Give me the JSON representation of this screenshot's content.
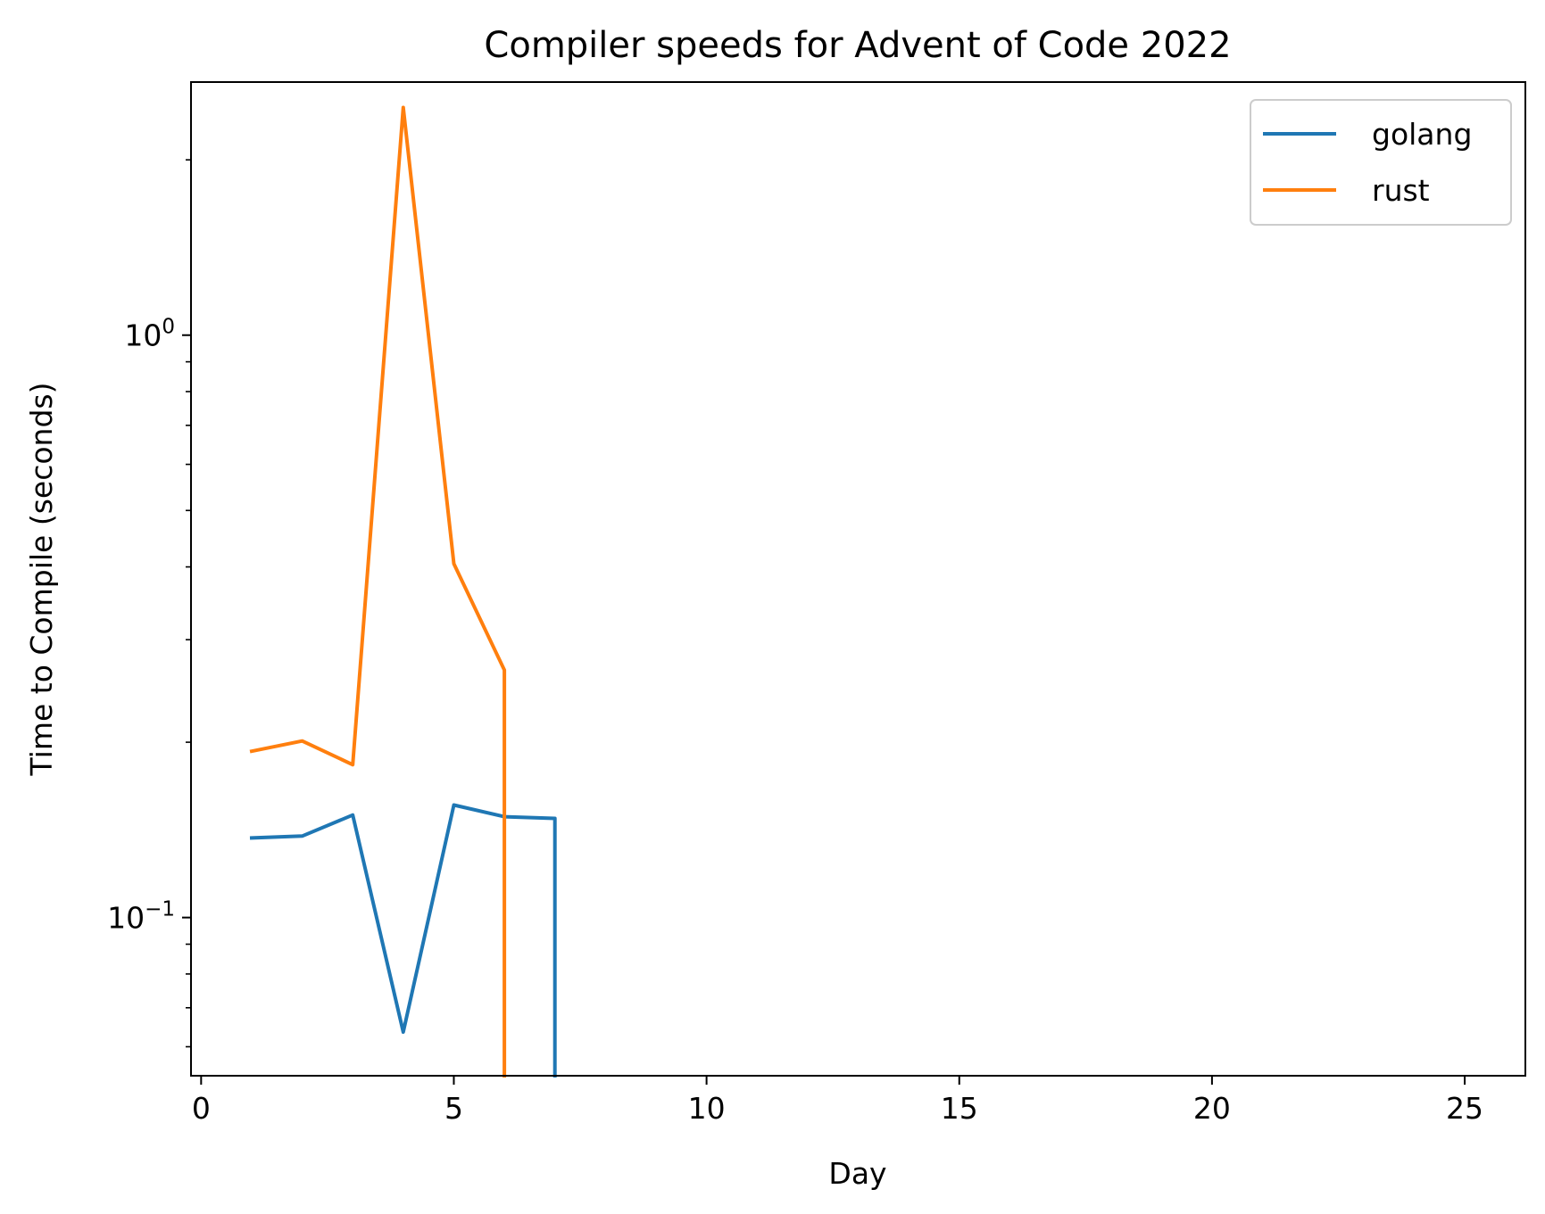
{
  "chart_data": {
    "type": "line",
    "title": "Compiler speeds for Advent of Code 2022",
    "xlabel": "Day",
    "ylabel": "Time to Compile (seconds)",
    "xlim": [
      -0.2,
      26.2
    ],
    "ylim": [
      0.0535,
      2.72
    ],
    "yscale": "log",
    "grid": false,
    "legend_position": "top-right",
    "x_ticks": [
      0,
      5,
      10,
      15,
      20,
      25
    ],
    "y_major_ticks": [
      {
        "value": 1,
        "base": "10",
        "exp": "0"
      },
      {
        "value": 0.1,
        "base": "10",
        "exp": "−1"
      }
    ],
    "y_minor_ticks": [
      0.06,
      0.07,
      0.08,
      0.09,
      0.2,
      0.3,
      0.4,
      0.5,
      0.6,
      0.7,
      0.8,
      0.9,
      2
    ],
    "series": [
      {
        "name": "golang",
        "color": "#1f77b4",
        "x": [
          1,
          2,
          3,
          4,
          5,
          6,
          7,
          7
        ],
        "y": [
          0.137,
          0.138,
          0.15,
          0.0636,
          0.156,
          0.149,
          0.148,
          0.0535
        ]
      },
      {
        "name": "rust",
        "color": "#ff7f0e",
        "x": [
          1,
          2,
          3,
          4,
          5,
          6,
          6
        ],
        "y": [
          0.193,
          0.201,
          0.183,
          2.46,
          0.405,
          0.266,
          0.0535
        ]
      }
    ]
  }
}
